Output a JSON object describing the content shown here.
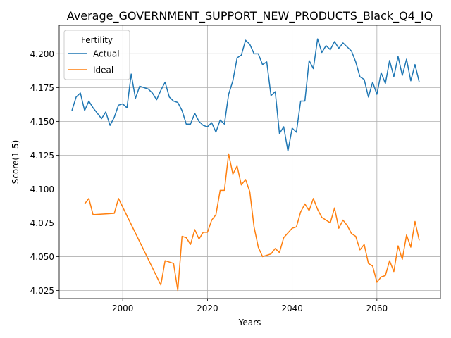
{
  "chart_data": {
    "type": "line",
    "title": "Average_GOVERNMENT_SUPPORT_NEW_PRODUCTS_Black_Q4_IQ",
    "xlabel": "Years",
    "ylabel": "Score(1-5)",
    "xlim": [
      1985,
      2075
    ],
    "ylim": [
      4.019,
      4.221
    ],
    "xticks": [
      2000,
      2020,
      2040,
      2060
    ],
    "xtick_labels": [
      "2000",
      "2020",
      "2040",
      "2060"
    ],
    "yticks": [
      4.025,
      4.05,
      4.075,
      4.1,
      4.125,
      4.15,
      4.175,
      4.2
    ],
    "ytick_labels": [
      "4.025",
      "4.050",
      "4.075",
      "4.100",
      "4.125",
      "4.150",
      "4.175",
      "4.200"
    ],
    "grid": true,
    "legend": {
      "title": "Fertility",
      "position": "top-left"
    },
    "series": [
      {
        "name": "Actual",
        "color": "#1f77b4",
        "x": [
          1988,
          1989,
          1990,
          1991,
          1992,
          1993,
          1994,
          1995,
          1996,
          1997,
          1998,
          1999,
          2000,
          2001,
          2002,
          2003,
          2004,
          2005,
          2006,
          2007,
          2008,
          2009,
          2010,
          2011,
          2012,
          2013,
          2014,
          2015,
          2016,
          2017,
          2018,
          2019,
          2020,
          2021,
          2022,
          2023,
          2024,
          2025,
          2026,
          2027,
          2028,
          2029,
          2030,
          2031,
          2032,
          2033,
          2034,
          2035,
          2036,
          2037,
          2038,
          2039,
          2040,
          2041,
          2042,
          2043,
          2044,
          2045,
          2046,
          2047,
          2048,
          2049,
          2050,
          2051,
          2052,
          2053,
          2054,
          2055,
          2056,
          2057,
          2058,
          2059,
          2060,
          2061,
          2062,
          2063,
          2064,
          2065,
          2066,
          2067,
          2068,
          2069,
          2070
        ],
        "values": [
          4.158,
          4.168,
          4.171,
          4.158,
          4.165,
          4.16,
          4.156,
          4.152,
          4.157,
          4.147,
          4.153,
          4.162,
          4.163,
          4.16,
          4.185,
          4.167,
          4.176,
          4.175,
          4.174,
          4.171,
          4.166,
          4.173,
          4.179,
          4.168,
          4.165,
          4.164,
          4.158,
          4.148,
          4.148,
          4.156,
          4.15,
          4.147,
          4.146,
          4.149,
          4.142,
          4.151,
          4.148,
          4.17,
          4.18,
          4.197,
          4.199,
          4.21,
          4.207,
          4.2,
          4.2,
          4.192,
          4.194,
          4.169,
          4.172,
          4.141,
          4.146,
          4.128,
          4.145,
          4.142,
          4.165,
          4.165,
          4.195,
          4.189,
          4.211,
          4.201,
          4.206,
          4.203,
          4.209,
          4.204,
          4.208,
          4.205,
          4.202,
          4.194,
          4.183,
          4.181,
          4.168,
          4.179,
          4.17,
          4.186,
          4.178,
          4.195,
          4.183,
          4.198,
          4.184,
          4.196,
          4.18,
          4.192,
          4.179
        ]
      },
      {
        "name": "Ideal",
        "color": "#ff7f0e",
        "x": [
          1991,
          1992,
          1993,
          1998,
          1999,
          2009,
          2010,
          2012,
          2013,
          2014,
          2015,
          2016,
          2017,
          2018,
          2019,
          2020,
          2021,
          2022,
          2023,
          2024,
          2025,
          2026,
          2027,
          2028,
          2029,
          2030,
          2031,
          2032,
          2033,
          2035,
          2036,
          2037,
          2038,
          2040,
          2041,
          2042,
          2043,
          2044,
          2045,
          2046,
          2047,
          2049,
          2050,
          2051,
          2052,
          2053,
          2054,
          2055,
          2056,
          2057,
          2058,
          2059,
          2060,
          2061,
          2062,
          2063,
          2064,
          2065,
          2066,
          2067,
          2068,
          2069,
          2070
        ],
        "values": [
          4.089,
          4.093,
          4.081,
          4.082,
          4.093,
          4.029,
          4.047,
          4.045,
          4.025,
          4.065,
          4.064,
          4.059,
          4.07,
          4.063,
          4.068,
          4.068,
          4.077,
          4.081,
          4.099,
          4.099,
          4.126,
          4.111,
          4.117,
          4.103,
          4.107,
          4.098,
          4.072,
          4.057,
          4.05,
          4.052,
          4.056,
          4.053,
          4.064,
          4.071,
          4.072,
          4.083,
          4.089,
          4.084,
          4.093,
          4.085,
          4.079,
          4.075,
          4.086,
          4.071,
          4.077,
          4.073,
          4.067,
          4.065,
          4.055,
          4.059,
          4.045,
          4.043,
          4.031,
          4.035,
          4.036,
          4.047,
          4.039,
          4.058,
          4.048,
          4.066,
          4.057,
          4.076,
          4.062
        ]
      }
    ]
  }
}
